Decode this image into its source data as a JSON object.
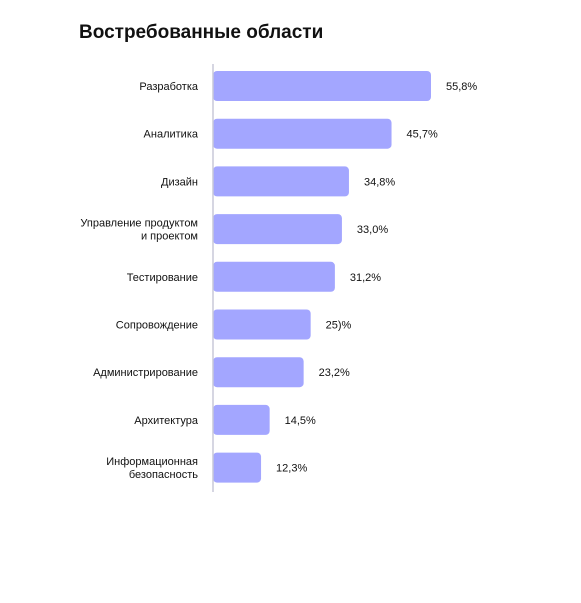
{
  "chart_data": {
    "type": "bar",
    "orientation": "horizontal",
    "title": "Востребованные области",
    "categories": [
      [
        "Разработка"
      ],
      [
        "Аналитика"
      ],
      [
        "Дизайн"
      ],
      [
        "Управление продуктом",
        "и проектом"
      ],
      [
        "Тестирование"
      ],
      [
        "Сопровождение"
      ],
      [
        "Администрирование"
      ],
      [
        "Архитектура"
      ],
      [
        "Информационная",
        "безопасность"
      ]
    ],
    "values": [
      55.8,
      45.7,
      34.8,
      33.0,
      31.2,
      25.0,
      23.2,
      14.5,
      12.3
    ],
    "value_labels": [
      "55,8%",
      "45,7%",
      "34,8%",
      "33,0%",
      "31,2%",
      "25)%",
      "23,2%",
      "14,5%",
      "12,3%"
    ],
    "xlim": [
      0,
      55.8
    ],
    "bar_color": "#a3a6ff",
    "axis_color": "#c8c8d8",
    "grid": false,
    "legend": "none"
  }
}
